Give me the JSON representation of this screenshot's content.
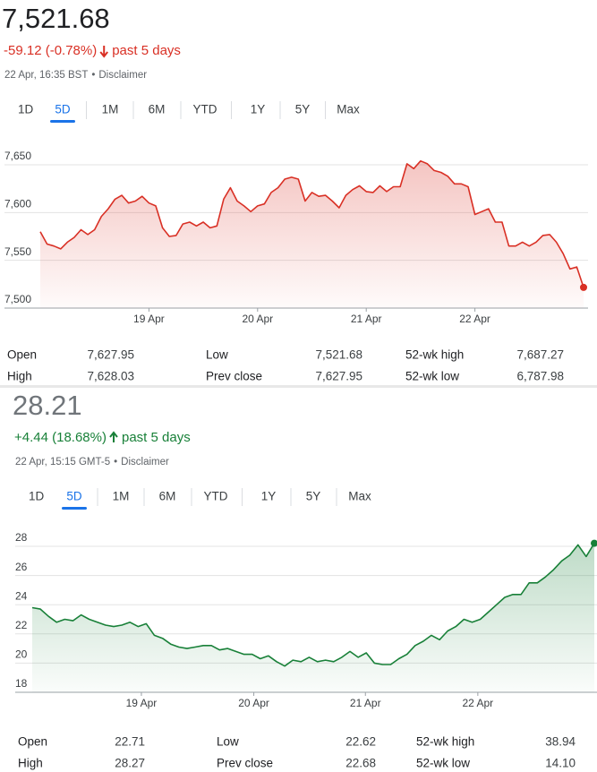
{
  "chart_data": [
    {
      "type": "line",
      "title": "7,521.68",
      "change": "-59.12 (-0.78%)",
      "change_period": "past 5 days",
      "timestamp": "22 Apr, 16:35 BST",
      "disclaimer": "Disclaimer",
      "ranges": [
        "1D",
        "5D",
        "1M",
        "6M",
        "YTD",
        "1Y",
        "5Y",
        "Max"
      ],
      "selected_range": 1,
      "color": "#d93025",
      "values": [
        7580,
        7567,
        7565,
        7562,
        7569,
        7574,
        7582,
        7577,
        7582,
        7596,
        7604,
        7614,
        7618,
        7610,
        7612,
        7617,
        7610,
        7607,
        7584,
        7575,
        7576,
        7588,
        7590,
        7586,
        7590,
        7584,
        7586,
        7614,
        7626,
        7612,
        7607,
        7601,
        7607,
        7609,
        7621,
        7626,
        7635,
        7637,
        7635,
        7612,
        7621,
        7617,
        7618,
        7612,
        7605,
        7618,
        7624,
        7628,
        7622,
        7621,
        7628,
        7622,
        7627,
        7627,
        7651,
        7646,
        7654,
        7651,
        7644,
        7642,
        7638,
        7630,
        7630,
        7627,
        7598,
        7601,
        7604,
        7590,
        7590,
        7565,
        7565,
        7569,
        7565,
        7569,
        7576,
        7577,
        7569,
        7557,
        7541,
        7543,
        7521.68
      ],
      "xlim": [
        0,
        80
      ],
      "xticks": [
        {
          "value": 16,
          "label": "19 Apr"
        },
        {
          "value": 32,
          "label": "20 Apr"
        },
        {
          "value": 48,
          "label": "21 Apr"
        },
        {
          "value": 64,
          "label": "22 Apr"
        }
      ],
      "ylim": [
        7500,
        7650
      ],
      "yticks": [
        {
          "value": 7500,
          "label": "7,500"
        },
        {
          "value": 7550,
          "label": "7,550"
        },
        {
          "value": 7600,
          "label": "7,600"
        },
        {
          "value": 7650,
          "label": "7,650"
        }
      ],
      "grid": true,
      "stats": [
        {
          "label": "Open",
          "value": "7,627.95"
        },
        {
          "label": "High",
          "value": "7,628.03"
        },
        {
          "label": "Low",
          "value": "7,521.68"
        },
        {
          "label": "Prev close",
          "value": "7,627.95"
        },
        {
          "label": "52-wk high",
          "value": "7,687.27"
        },
        {
          "label": "52-wk low",
          "value": "6,787.98"
        }
      ]
    },
    {
      "type": "line",
      "title": "28.21",
      "change": "+4.44 (18.68%)",
      "change_period": "past 5 days",
      "timestamp": "22 Apr, 15:15 GMT-5",
      "disclaimer": "Disclaimer",
      "ranges": [
        "1D",
        "5D",
        "1M",
        "6M",
        "YTD",
        "1Y",
        "5Y",
        "Max"
      ],
      "selected_range": 1,
      "color": "#188038",
      "values": [
        23.8,
        23.7,
        23.2,
        22.8,
        23.0,
        22.9,
        23.3,
        23.0,
        22.8,
        22.6,
        22.5,
        22.6,
        22.8,
        22.5,
        22.7,
        21.9,
        21.7,
        21.3,
        21.1,
        21.0,
        21.1,
        21.2,
        21.2,
        20.9,
        21.0,
        20.8,
        20.6,
        20.6,
        20.3,
        20.5,
        20.1,
        19.8,
        20.2,
        20.1,
        20.4,
        20.1,
        20.2,
        20.1,
        20.4,
        20.8,
        20.4,
        20.7,
        20.0,
        19.9,
        19.9,
        20.3,
        20.6,
        21.2,
        21.5,
        21.9,
        21.6,
        22.2,
        22.5,
        23.0,
        22.8,
        23.0,
        23.5,
        24.0,
        24.5,
        24.7,
        24.7,
        25.5,
        25.5,
        25.9,
        26.4,
        27.0,
        27.4,
        28.1,
        27.3,
        28.21
      ],
      "xlim": [
        0,
        69
      ],
      "xticks": [
        {
          "value": 13.4,
          "label": "19 Apr"
        },
        {
          "value": 27.2,
          "label": "20 Apr"
        },
        {
          "value": 40.9,
          "label": "21 Apr"
        },
        {
          "value": 54.7,
          "label": "22 Apr"
        }
      ],
      "ylim": [
        18,
        28
      ],
      "yticks": [
        18,
        20,
        22,
        24,
        26,
        28
      ],
      "grid": true,
      "stats": [
        {
          "label": "Open",
          "value": "22.71"
        },
        {
          "label": "High",
          "value": "28.27"
        },
        {
          "label": "Low",
          "value": "22.62"
        },
        {
          "label": "Prev close",
          "value": "22.68"
        },
        {
          "label": "52-wk high",
          "value": "38.94"
        },
        {
          "label": "52-wk low",
          "value": "14.10"
        }
      ]
    }
  ]
}
